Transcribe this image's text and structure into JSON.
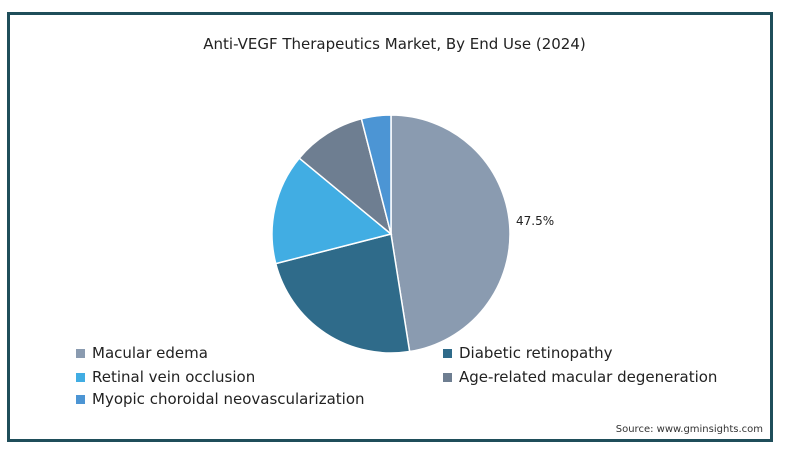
{
  "chart_data": {
    "type": "pie",
    "title": "Anti-VEGF Therapeutics Market, By End Use (2024)",
    "slices": [
      {
        "label": "Macular edema",
        "value": 47.5,
        "color": "#8a9bb0"
      },
      {
        "label": "Diabetic retinopathy",
        "value": 23.5,
        "color": "#2f6b8a"
      },
      {
        "label": "Retinal vein occlusion",
        "value": 15.0,
        "color": "#41ade3"
      },
      {
        "label": "Age-related macular degeneration",
        "value": 10.0,
        "color": "#6e7e91"
      },
      {
        "label": "Myopic choroidal neovascularization",
        "value": 4.0,
        "color": "#4c95d4"
      }
    ],
    "data_labels": [
      {
        "label": "Macular edema",
        "text": "47.5%"
      }
    ],
    "legend_placement": "bottom"
  },
  "source": "Source: www.gminsights.com"
}
